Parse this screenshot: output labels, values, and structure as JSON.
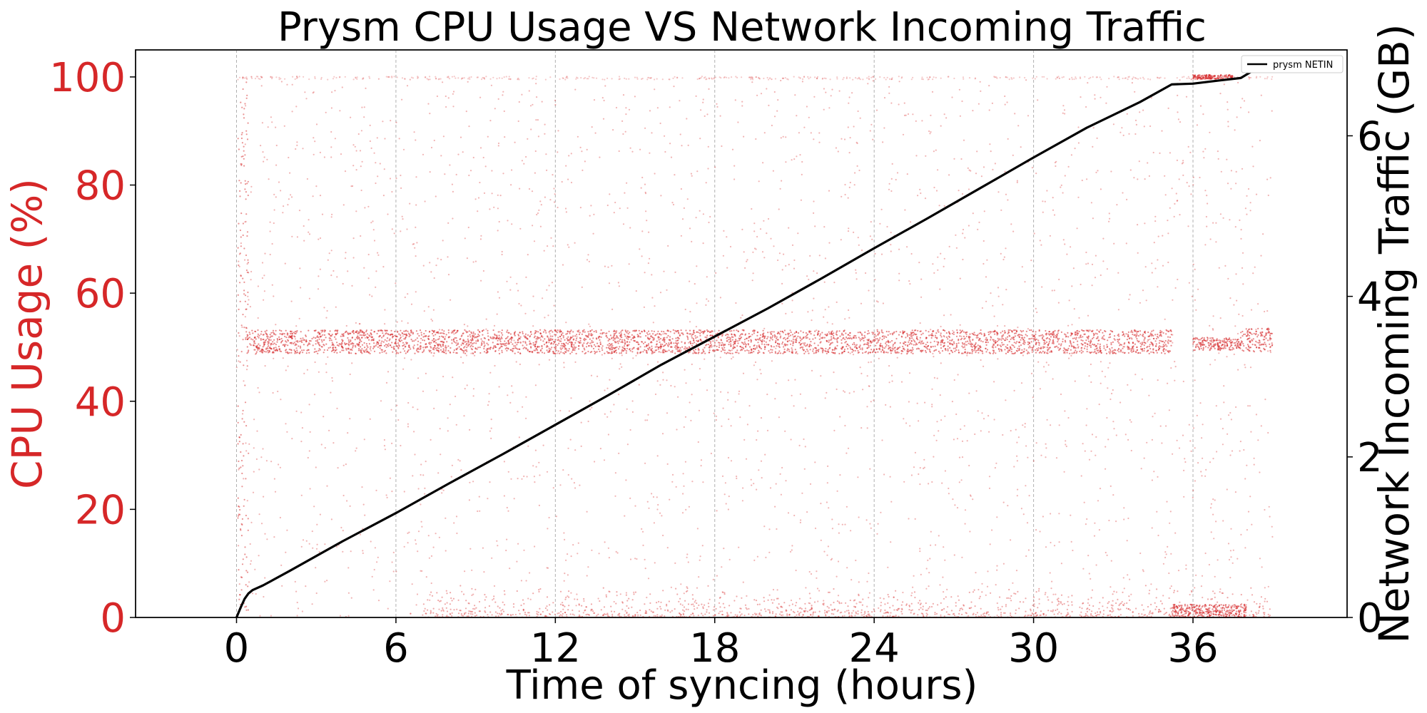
{
  "chart_data": {
    "type": "scatter",
    "title": "Prysm CPU Usage VS Network Incoming Traffic",
    "xlabel": "Time of syncing (hours)",
    "ylabel_left": "CPU Usage (%)",
    "ylabel_right": "Network Incoming Traffic (GB)",
    "xlim": [
      -3.8,
      41.8
    ],
    "ylim_left": [
      0,
      105
    ],
    "ylim_right": [
      0,
      7.07
    ],
    "x_ticks": [
      0,
      6,
      12,
      18,
      24,
      30,
      36
    ],
    "y_left_ticks": [
      0,
      20,
      40,
      60,
      80,
      100
    ],
    "y_right_ticks": [
      0,
      2,
      4,
      6
    ],
    "grid": "vertical dashed at x ticks",
    "legend_position": "top-right",
    "colors": {
      "cpu": "#d62728",
      "netin": "#000000",
      "grid": "#b0b0b0"
    },
    "series": [
      {
        "name": "prysm NETIN",
        "axis": "right",
        "style": "line",
        "x": [
          0,
          0.15,
          0.3,
          0.45,
          0.6,
          1,
          2,
          4,
          6,
          8,
          10,
          12,
          14,
          16,
          18,
          20,
          22,
          24,
          26,
          28,
          30,
          32,
          34,
          35.2,
          36,
          37,
          37.8,
          38.5,
          39
        ],
        "y": [
          0,
          0.12,
          0.23,
          0.3,
          0.34,
          0.4,
          0.58,
          0.95,
          1.3,
          1.67,
          2.03,
          2.4,
          2.77,
          3.15,
          3.5,
          3.85,
          4.22,
          4.6,
          4.97,
          5.35,
          5.73,
          6.1,
          6.42,
          6.64,
          6.65,
          6.69,
          6.72,
          6.86,
          6.98
        ]
      },
      {
        "name": "",
        "axis": "left",
        "style": "scatter",
        "description_bands": [
          {
            "x_range": [
              0.4,
              35.2
            ],
            "y_center": 51,
            "y_spread": 2.2
          },
          {
            "x_range": [
              36.0,
              37.8
            ],
            "y_center": 50.6,
            "y_spread": 1.2
          },
          {
            "x_range": [
              37.8,
              39.0
            ],
            "y_center": 51.3,
            "y_spread": 2.2
          },
          {
            "x_range": [
              35.2,
              38.0
            ],
            "y_center": 1.2,
            "y_spread": 1.2
          },
          {
            "x_range": [
              36.0,
              37.5
            ],
            "y_center": 100,
            "y_spread": 0.4
          }
        ],
        "x_range": [
          0,
          39
        ],
        "y_range": [
          0,
          100
        ]
      }
    ]
  }
}
